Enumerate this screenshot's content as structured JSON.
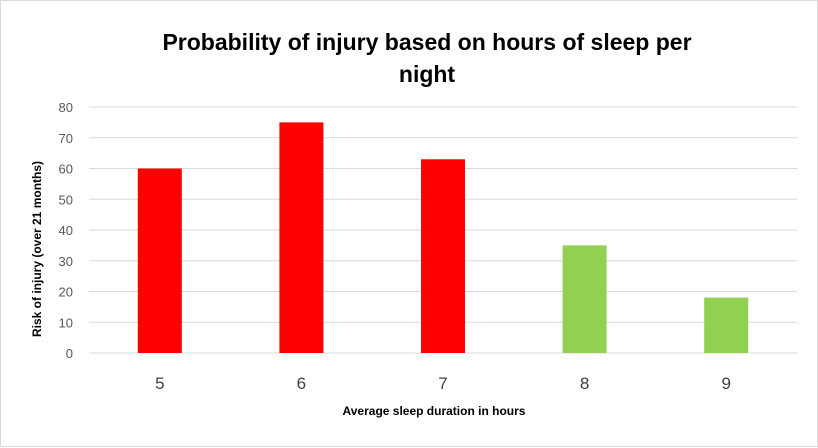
{
  "chart_data": {
    "type": "bar",
    "title_lines": [
      "Probability of injury based on hours of sleep per",
      "night"
    ],
    "xlabel": "Average sleep duration in hours",
    "ylabel": "Risk of injury (over 21 months)",
    "categories": [
      "5",
      "6",
      "7",
      "8",
      "9"
    ],
    "values": [
      60,
      75,
      63,
      35,
      18
    ],
    "bar_colors": [
      "#ff0000",
      "#ff0000",
      "#ff0000",
      "#92d050",
      "#92d050"
    ],
    "ylim": [
      0,
      80
    ],
    "yticks": [
      "0",
      "10",
      "20",
      "30",
      "40",
      "50",
      "60",
      "70",
      "80"
    ],
    "grid": true,
    "gridline_color": "#d9d9d9"
  }
}
